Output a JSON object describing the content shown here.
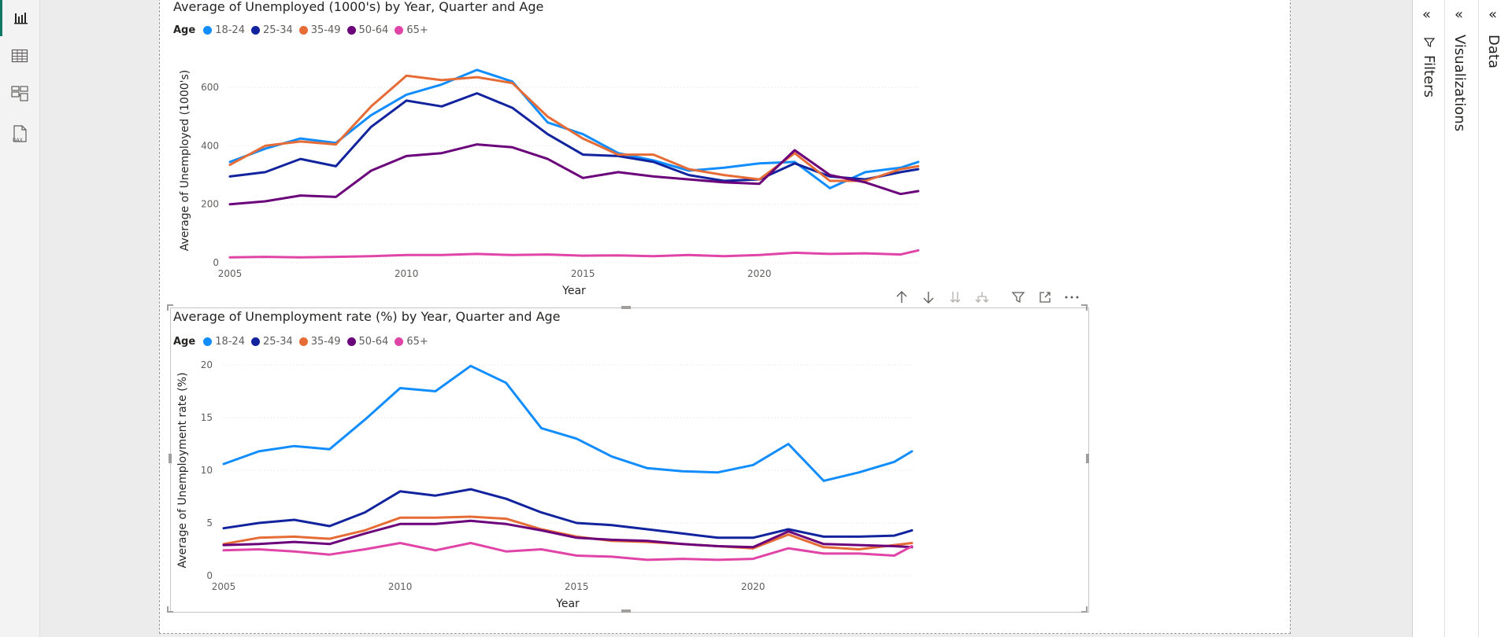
{
  "left_rail": {
    "items": [
      {
        "name": "report-view-icon",
        "active": true
      },
      {
        "name": "table-view-icon",
        "active": false
      },
      {
        "name": "model-view-icon",
        "active": false
      },
      {
        "name": "dax-query-view-icon",
        "active": false,
        "label": "DAX"
      }
    ]
  },
  "legend": {
    "title": "Age",
    "items": [
      {
        "label": "18-24",
        "color": "#118DFF"
      },
      {
        "label": "25-34",
        "color": "#12239E"
      },
      {
        "label": "35-49",
        "color": "#E66C37"
      },
      {
        "label": "50-64",
        "color": "#6B007B"
      },
      {
        "label": "65+",
        "color": "#E044A7"
      }
    ]
  },
  "chart1": {
    "title": "Average of Unemployed (1000's) by Year, Quarter and Age",
    "ylabel": "Average of Unemployed (1000's)",
    "xlabel": "Year",
    "xticks": [
      "2005",
      "2010",
      "2015",
      "2020"
    ],
    "yticks": [
      "0",
      "200",
      "400",
      "600"
    ]
  },
  "chart2": {
    "title": "Average of Unemployment rate (%) by Year, Quarter and Age",
    "ylabel": "Average of Unemployment rate (%)",
    "xlabel": "Year",
    "xticks": [
      "2005",
      "2010",
      "2015",
      "2020"
    ],
    "yticks": [
      "0",
      "5",
      "10",
      "15",
      "20"
    ]
  },
  "chart_data": [
    {
      "type": "line",
      "title": "Average of Unemployed (1000's) by Year, Quarter and Age",
      "xlabel": "Year",
      "ylabel": "Average of Unemployed (1000's)",
      "xlim": [
        2005,
        2024.5
      ],
      "ylim": [
        0,
        700
      ],
      "grid": true,
      "legend": "top-left",
      "x": [
        2005,
        2006,
        2007,
        2008,
        2009,
        2010,
        2011,
        2012,
        2013,
        2014,
        2015,
        2016,
        2017,
        2018,
        2019,
        2020,
        2021,
        2022,
        2023,
        2024,
        2024.5
      ],
      "series": [
        {
          "name": "18-24",
          "color": "#118DFF",
          "values": [
            345,
            390,
            425,
            410,
            505,
            575,
            610,
            660,
            620,
            480,
            440,
            375,
            350,
            315,
            325,
            340,
            345,
            255,
            310,
            325,
            345
          ]
        },
        {
          "name": "25-34",
          "color": "#12239E",
          "values": [
            295,
            310,
            355,
            330,
            465,
            555,
            535,
            580,
            530,
            440,
            370,
            365,
            345,
            300,
            280,
            285,
            340,
            295,
            285,
            310,
            320
          ]
        },
        {
          "name": "35-49",
          "color": "#E66C37",
          "values": [
            335,
            400,
            415,
            405,
            535,
            640,
            625,
            635,
            615,
            500,
            425,
            370,
            370,
            320,
            300,
            285,
            375,
            280,
            280,
            320,
            330
          ]
        },
        {
          "name": "50-64",
          "color": "#6B007B",
          "values": [
            200,
            210,
            230,
            225,
            315,
            365,
            375,
            405,
            395,
            355,
            290,
            310,
            295,
            285,
            275,
            270,
            385,
            300,
            275,
            235,
            245
          ]
        },
        {
          "name": "65+",
          "color": "#E044A7",
          "values": [
            18,
            20,
            18,
            20,
            22,
            26,
            26,
            30,
            26,
            28,
            24,
            25,
            22,
            26,
            22,
            26,
            34,
            30,
            32,
            28,
            42
          ]
        }
      ]
    },
    {
      "type": "line",
      "title": "Average of Unemployment rate (%) by Year, Quarter and Age",
      "xlabel": "Year",
      "ylabel": "Average of Unemployment rate (%)",
      "xlim": [
        2005,
        2024.5
      ],
      "ylim": [
        0,
        20
      ],
      "grid": true,
      "legend": "top-left",
      "x": [
        2005,
        2006,
        2007,
        2008,
        2009,
        2010,
        2011,
        2012,
        2013,
        2014,
        2015,
        2016,
        2017,
        2018,
        2019,
        2020,
        2021,
        2022,
        2023,
        2024,
        2024.5
      ],
      "series": [
        {
          "name": "18-24",
          "color": "#118DFF",
          "values": [
            10.6,
            11.8,
            12.3,
            12.0,
            14.8,
            17.8,
            17.5,
            19.9,
            18.3,
            14.0,
            13.0,
            11.3,
            10.2,
            9.9,
            9.8,
            10.5,
            12.5,
            9.0,
            9.8,
            10.8,
            11.8
          ]
        },
        {
          "name": "25-34",
          "color": "#12239E",
          "values": [
            4.5,
            5.0,
            5.3,
            4.7,
            6.0,
            8.0,
            7.6,
            8.2,
            7.3,
            6.0,
            5.0,
            4.8,
            4.4,
            4.0,
            3.6,
            3.6,
            4.4,
            3.7,
            3.7,
            3.8,
            4.3
          ]
        },
        {
          "name": "35-49",
          "color": "#E66C37",
          "values": [
            3.0,
            3.6,
            3.7,
            3.5,
            4.3,
            5.5,
            5.5,
            5.6,
            5.4,
            4.4,
            3.7,
            3.3,
            3.2,
            3.0,
            2.8,
            2.6,
            3.9,
            2.7,
            2.5,
            2.9,
            3.1
          ]
        },
        {
          "name": "50-64",
          "color": "#6B007B",
          "values": [
            2.9,
            3.0,
            3.2,
            3.0,
            4.0,
            4.9,
            4.9,
            5.2,
            4.9,
            4.3,
            3.6,
            3.4,
            3.3,
            3.0,
            2.8,
            2.7,
            4.2,
            3.0,
            2.9,
            2.8,
            2.7
          ]
        },
        {
          "name": "65+",
          "color": "#E044A7",
          "values": [
            2.4,
            2.5,
            2.3,
            2.0,
            2.5,
            3.1,
            2.4,
            3.1,
            2.3,
            2.5,
            1.9,
            1.8,
            1.5,
            1.6,
            1.5,
            1.6,
            2.6,
            2.1,
            2.1,
            1.9,
            2.8
          ]
        }
      ]
    }
  ],
  "visual_toolbar": {
    "icons": [
      "drill-up-icon",
      "drill-down-icon",
      "expand-all-icon",
      "expand-hierarchy-icon",
      "filter-icon",
      "focus-mode-icon",
      "more-options-icon"
    ]
  },
  "panes": {
    "filters": {
      "label": "Filters"
    },
    "visualizations": {
      "label": "Visualizations"
    },
    "data": {
      "label": "Data"
    }
  }
}
